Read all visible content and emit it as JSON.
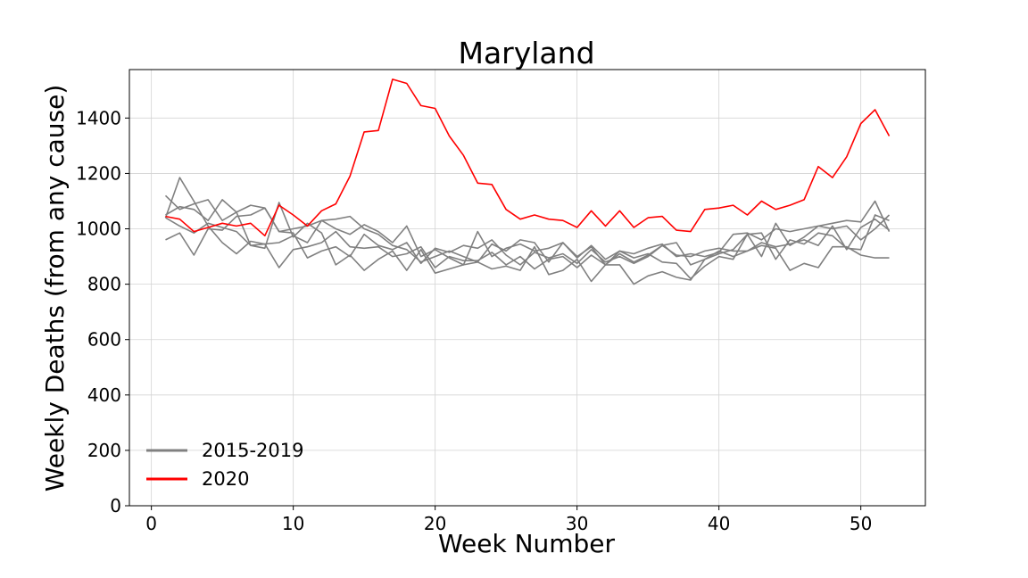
{
  "chart_data": {
    "type": "line",
    "title": "Maryland",
    "xlabel": "Week Number",
    "ylabel": "Weekly Deaths (from any cause)",
    "xlim": [
      -1.55,
      54.55
    ],
    "ylim": [
      0,
      1575
    ],
    "xticks": [
      0,
      10,
      20,
      30,
      40,
      50
    ],
    "yticks": [
      0,
      200,
      400,
      600,
      800,
      1000,
      1200,
      1400
    ],
    "grid": true,
    "legend": {
      "placement": "lower-left",
      "entries": [
        {
          "label": "2015-2019",
          "color": "#808080"
        },
        {
          "label": "2020",
          "color": "#ff0000"
        }
      ]
    },
    "x": [
      1,
      2,
      3,
      4,
      5,
      6,
      7,
      8,
      9,
      10,
      11,
      12,
      13,
      14,
      15,
      16,
      17,
      18,
      19,
      20,
      21,
      22,
      23,
      24,
      25,
      26,
      27,
      28,
      29,
      30,
      31,
      32,
      33,
      34,
      35,
      36,
      37,
      38,
      39,
      40,
      41,
      42,
      43,
      44,
      45,
      46,
      47,
      48,
      49,
      50,
      51,
      52
    ],
    "series": [
      {
        "group": "2015-2019",
        "color": "#808080",
        "values": [
          1120,
          1070,
          1090,
          1105,
          1030,
          1060,
          1085,
          1075,
          990,
          1000,
          1010,
          1030,
          1000,
          980,
          1015,
          990,
          950,
          1010,
          900,
          925,
          895,
          870,
          990,
          900,
          930,
          945,
          920,
          930,
          950,
          895,
          940,
          890,
          920,
          910,
          930,
          945,
          900,
          910,
          900,
          915,
          980,
          985,
          960,
          1000,
          990,
          1000,
          1010,
          1020,
          1030,
          1025,
          1100,
          990
        ]
      },
      {
        "group": "2015-2019",
        "color": "#808080",
        "values": [
          1040,
          1185,
          1100,
          1010,
          950,
          910,
          955,
          945,
          950,
          975,
          950,
          1030,
          1035,
          1045,
          1000,
          980,
          940,
          925,
          880,
          900,
          920,
          900,
          880,
          945,
          920,
          960,
          950,
          880,
          950,
          900,
          935,
          870,
          910,
          880,
          905,
          940,
          950,
          870,
          890,
          910,
          925,
          980,
          900,
          1020,
          940,
          970,
          1010,
          1000,
          1010,
          960,
          1000,
          1050
        ]
      },
      {
        "group": "2015-2019",
        "color": "#808080",
        "values": [
          960,
          985,
          905,
          1000,
          995,
          1045,
          1050,
          1075,
          990,
          985,
          895,
          920,
          935,
          900,
          980,
          940,
          925,
          950,
          875,
          930,
          915,
          940,
          930,
          960,
          905,
          870,
          915,
          895,
          910,
          875,
          925,
          880,
          900,
          875,
          900,
          940,
          905,
          900,
          920,
          930,
          920,
          920,
          950,
          935,
          945,
          960,
          940,
          1010,
          925,
          1005,
          1035,
          995
        ]
      },
      {
        "group": "2015-2019",
        "color": "#808080",
        "values": [
          1050,
          1080,
          1070,
          1030,
          1105,
          1060,
          940,
          945,
          860,
          925,
          935,
          950,
          990,
          935,
          930,
          935,
          900,
          910,
          935,
          860,
          900,
          885,
          885,
          915,
          870,
          900,
          855,
          890,
          900,
          860,
          905,
          870,
          870,
          800,
          830,
          845,
          825,
          815,
          890,
          920,
          900,
          920,
          940,
          930,
          850,
          875,
          860,
          935,
          935,
          905,
          895,
          895
        ]
      },
      {
        "group": "2015-2019",
        "color": "#808080",
        "values": [
          1040,
          1010,
          985,
          1020,
          1005,
          990,
          940,
          930,
          1095,
          970,
          1020,
          985,
          870,
          905,
          850,
          890,
          920,
          850,
          925,
          840,
          855,
          870,
          880,
          855,
          865,
          850,
          935,
          835,
          850,
          890,
          810,
          870,
          920,
          895,
          910,
          880,
          875,
          820,
          865,
          900,
          890,
          980,
          985,
          890,
          960,
          945,
          985,
          975,
          930,
          925,
          1050,
          1030
        ]
      },
      {
        "group": "2020",
        "color": "#ff0000",
        "values": [
          1045,
          1035,
          990,
          1005,
          1020,
          1010,
          1020,
          975,
          1085,
          1050,
          1010,
          1065,
          1090,
          1190,
          1350,
          1355,
          1540,
          1525,
          1445,
          1435,
          1335,
          1265,
          1165,
          1160,
          1070,
          1035,
          1050,
          1035,
          1030,
          1005,
          1065,
          1010,
          1065,
          1005,
          1040,
          1045,
          995,
          990,
          1070,
          1075,
          1085,
          1050,
          1100,
          1070,
          1085,
          1105,
          1225,
          1185,
          1260,
          1380,
          1430,
          1335
        ]
      }
    ]
  }
}
